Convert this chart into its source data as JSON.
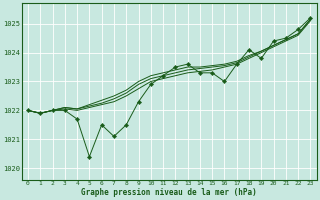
{
  "title": "Graphe pression niveau de la mer (hPa)",
  "bg_color": "#c8e8e0",
  "grid_color": "#ffffff",
  "line_color": "#1a5c1a",
  "xlim": [
    -0.5,
    23.5
  ],
  "ylim": [
    1019.6,
    1025.7
  ],
  "yticks": [
    1020,
    1021,
    1022,
    1023,
    1024,
    1025
  ],
  "xticks": [
    0,
    1,
    2,
    3,
    4,
    5,
    6,
    7,
    8,
    9,
    10,
    11,
    12,
    13,
    14,
    15,
    16,
    17,
    18,
    19,
    20,
    21,
    22,
    23
  ],
  "series_with_markers": [
    [
      1022.0,
      1021.9,
      1022.0,
      1022.0,
      1021.7,
      1020.4,
      1021.5,
      1021.1,
      1021.5,
      1022.3,
      1022.9,
      1023.2,
      1023.5,
      1023.6,
      1023.3,
      1023.3,
      1023.0,
      1023.6,
      1024.1,
      1023.8,
      1024.4,
      1024.5,
      1024.8,
      1025.2
    ]
  ],
  "series_no_markers": [
    [
      1022.0,
      1021.9,
      1022.0,
      1022.1,
      1022.05,
      1022.2,
      1022.35,
      1022.5,
      1022.7,
      1023.0,
      1023.2,
      1023.3,
      1023.4,
      1023.5,
      1023.5,
      1023.55,
      1023.6,
      1023.7,
      1023.9,
      1024.05,
      1024.25,
      1024.45,
      1024.65,
      1025.15
    ],
    [
      1022.0,
      1021.9,
      1022.0,
      1022.05,
      1022.0,
      1022.1,
      1022.2,
      1022.3,
      1022.5,
      1022.75,
      1023.0,
      1023.1,
      1023.2,
      1023.3,
      1023.35,
      1023.4,
      1023.5,
      1023.6,
      1023.8,
      1024.0,
      1024.2,
      1024.4,
      1024.6,
      1025.1
    ],
    [
      1022.0,
      1021.9,
      1022.0,
      1022.1,
      1022.05,
      1022.15,
      1022.25,
      1022.4,
      1022.6,
      1022.9,
      1023.1,
      1023.2,
      1023.3,
      1023.4,
      1023.45,
      1023.5,
      1023.55,
      1023.65,
      1023.85,
      1024.05,
      1024.25,
      1024.45,
      1024.65,
      1025.15
    ]
  ]
}
